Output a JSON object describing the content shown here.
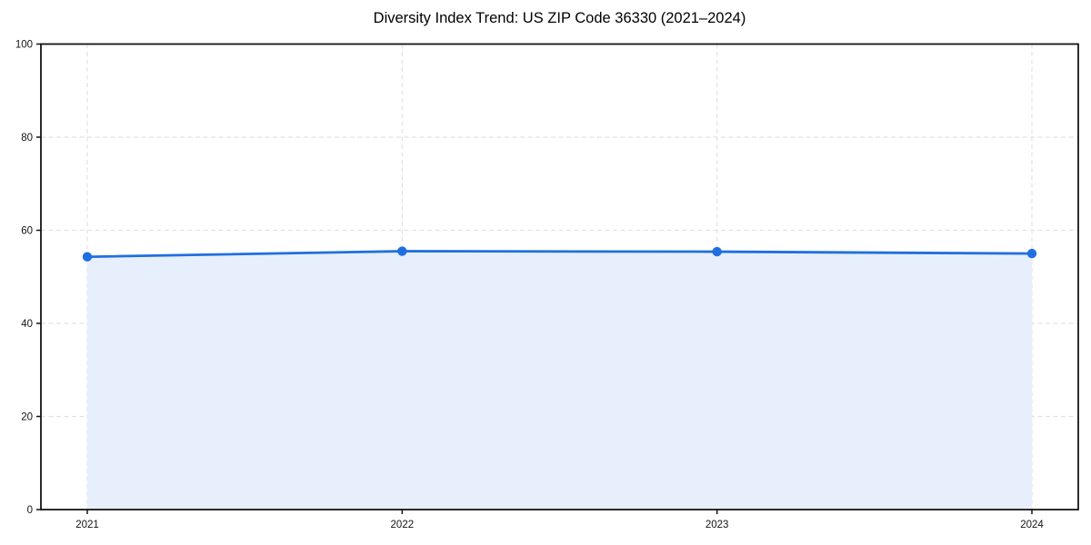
{
  "chart_data": {
    "type": "line",
    "title": "Diversity Index Trend: US ZIP Code 36330 (2021–2024)",
    "series_name": "Diversity Index",
    "x": [
      "2021",
      "2022",
      "2023",
      "2024"
    ],
    "values": [
      54.3,
      55.5,
      55.4,
      55.0
    ],
    "xlabel": "",
    "ylabel": "",
    "ylim": [
      0,
      100
    ],
    "yticks": [
      0,
      20,
      40,
      60,
      80,
      100
    ],
    "xticks": [
      "2021",
      "2022",
      "2023",
      "2024"
    ],
    "grid": "dashed, horizontal and vertical",
    "legend_position": "none",
    "area_fill_below_line": true,
    "marker": "circle"
  },
  "colors": {
    "line": "#1f6fe0",
    "marker": "#1f6fe0",
    "area_fill": "#e8effc",
    "gridline": "#e2e2e2",
    "spine": "#141414",
    "tick_text": "#141414",
    "background": "#ffffff"
  }
}
